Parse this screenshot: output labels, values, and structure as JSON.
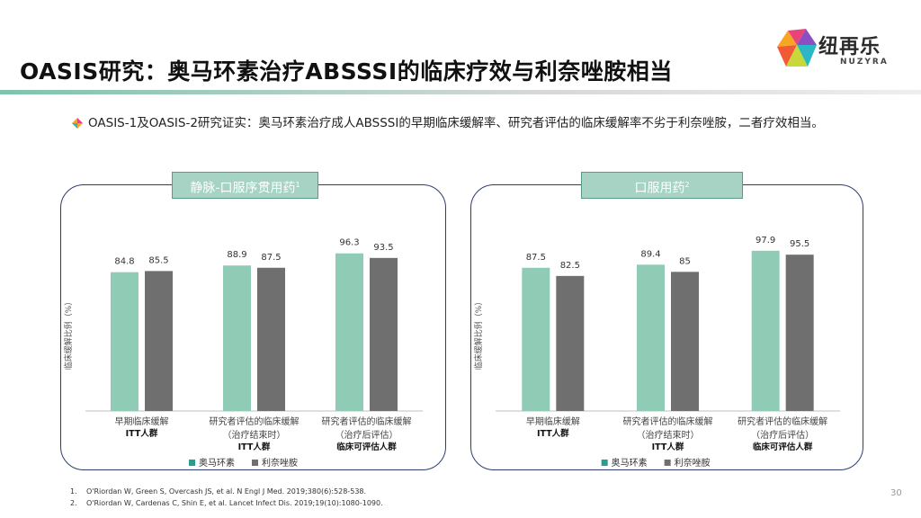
{
  "header": {
    "title": "OASIS研究：奥马环素治疗ABSSSI的临床疗效与利奈唑胺相当",
    "logo_cn": "纽再乐",
    "logo_en": "NUZYRA"
  },
  "bullet": {
    "text": "OASIS-1及OASIS-2研究证实：奥马环素治疗成人ABSSSI的早期临床缓解率、研究者评估的临床缓解率不劣于利奈唑胺，二者疗效相当。"
  },
  "panels": {
    "left_label": "静脉-口服序贯用药",
    "left_sup": "1",
    "right_label": "口服用药",
    "right_sup": "2"
  },
  "colors": {
    "omadacycline": "#8fcbb5",
    "linezolid": "#6f6f6f",
    "legend_omadacycline": "#2a9d8f",
    "legend_linezolid": "#707070"
  },
  "chart_data": [
    {
      "type": "bar",
      "ylabel": "临床缓解比例（%）",
      "categories": [
        {
          "lines": [
            "早期临床缓解"
          ],
          "sub": "ITT人群"
        },
        {
          "lines": [
            "研究者评估的临床缓解",
            "（治疗结束时）"
          ],
          "sub": "ITT人群"
        },
        {
          "lines": [
            "研究者评估的临床缓解",
            "（治疗后评估）"
          ],
          "sub": "临床可评估人群"
        }
      ],
      "series": [
        {
          "name": "奥马环素",
          "values": [
            84.8,
            88.9,
            96.3
          ]
        },
        {
          "name": "利奈唑胺",
          "values": [
            85.5,
            87.5,
            93.5
          ]
        }
      ],
      "ylim": [
        0,
        100
      ],
      "legend_position": "bottom"
    },
    {
      "type": "bar",
      "ylabel": "临床缓解比例（%）",
      "categories": [
        {
          "lines": [
            "早期临床缓解"
          ],
          "sub": "ITT人群"
        },
        {
          "lines": [
            "研究者评估的临床缓解",
            "（治疗结束时）"
          ],
          "sub": "ITT人群"
        },
        {
          "lines": [
            "研究者评估的临床缓解",
            "（治疗后评估）"
          ],
          "sub": "临床可评估人群"
        }
      ],
      "series": [
        {
          "name": "奥马环素",
          "values": [
            87.5,
            89.4,
            97.9
          ]
        },
        {
          "name": "利奈唑胺",
          "values": [
            82.5,
            85,
            95.5
          ]
        }
      ],
      "ylim": [
        0,
        100
      ],
      "legend_position": "bottom"
    }
  ],
  "footnotes": [
    {
      "num": "1.",
      "text": "O'Riordan W, Green S, Overcash JS, et al. N Engl J Med. 2019;380(6):528-538."
    },
    {
      "num": "2.",
      "text": "O'Riordan W, Cardenas C, Shin E, et al. Lancet Infect Dis. 2019;19(10):1080-1090."
    }
  ],
  "page_number": "30"
}
